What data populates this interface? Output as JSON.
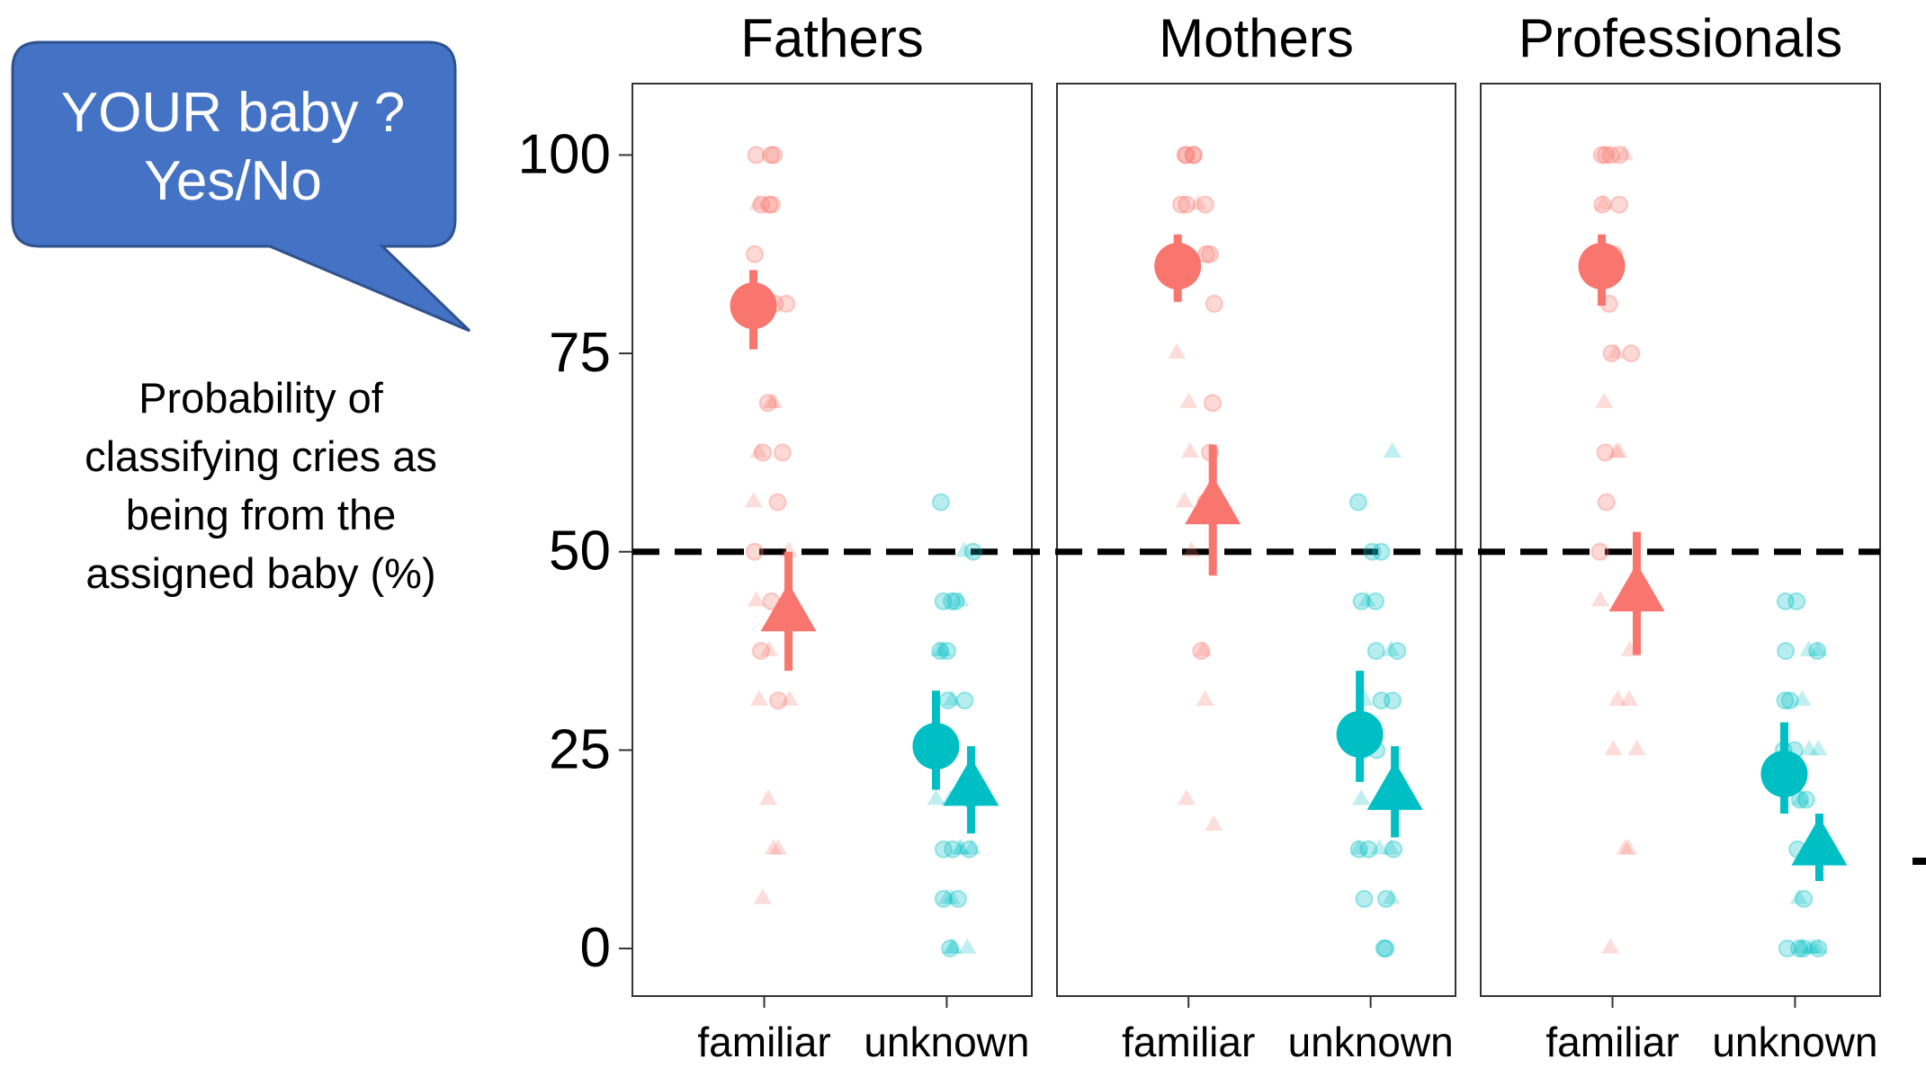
{
  "callout": {
    "line1": "YOUR baby ?",
    "line2": "Yes/No",
    "fill": "#4472C4"
  },
  "ylabel_lines": [
    "Probability of",
    "classifying cries as",
    "being from the",
    "assigned baby (%)"
  ],
  "colors": {
    "familiar": "#F8766D",
    "unknown": "#00BFC4"
  },
  "chart_data": {
    "type": "scatter",
    "facets": [
      "Fathers",
      "Mothers",
      "Professionals"
    ],
    "categories": [
      "familiar",
      "unknown"
    ],
    "yticks": [
      0,
      25,
      50,
      75,
      100
    ],
    "ylim": [
      -6,
      109
    ],
    "reference_line": 50,
    "grid": false,
    "summaries": [
      {
        "facet": "Fathers",
        "category": "familiar",
        "shape": "circle",
        "mean": 81,
        "low": 75.5,
        "high": 85.5
      },
      {
        "facet": "Fathers",
        "category": "familiar",
        "shape": "triangle",
        "mean": 42,
        "low": 35,
        "high": 50
      },
      {
        "facet": "Fathers",
        "category": "unknown",
        "shape": "circle",
        "mean": 25.5,
        "low": 20,
        "high": 32.5
      },
      {
        "facet": "Fathers",
        "category": "unknown",
        "shape": "triangle",
        "mean": 20,
        "low": 14.5,
        "high": 25.5
      },
      {
        "facet": "Mothers",
        "category": "familiar",
        "shape": "circle",
        "mean": 86,
        "low": 81.5,
        "high": 90
      },
      {
        "facet": "Mothers",
        "category": "familiar",
        "shape": "triangle",
        "mean": 55.5,
        "low": 47,
        "high": 63.5
      },
      {
        "facet": "Mothers",
        "category": "unknown",
        "shape": "circle",
        "mean": 27,
        "low": 21,
        "high": 35
      },
      {
        "facet": "Mothers",
        "category": "unknown",
        "shape": "triangle",
        "mean": 19.5,
        "low": 14,
        "high": 25.5
      },
      {
        "facet": "Professionals",
        "category": "familiar",
        "shape": "circle",
        "mean": 86,
        "low": 81,
        "high": 90
      },
      {
        "facet": "Professionals",
        "category": "familiar",
        "shape": "triangle",
        "mean": 44.5,
        "low": 37,
        "high": 52.5
      },
      {
        "facet": "Professionals",
        "category": "unknown",
        "shape": "circle",
        "mean": 22,
        "low": 17,
        "high": 28.5
      },
      {
        "facet": "Professionals",
        "category": "unknown",
        "shape": "triangle",
        "mean": 12.5,
        "low": 8.5,
        "high": 17
      }
    ],
    "points": [
      {
        "facet": "Fathers",
        "category": "familiar",
        "circle": [
          100,
          100,
          100,
          93.75,
          93.75,
          93.75,
          87.5,
          81.25,
          81.25,
          68.75,
          62.5,
          62.5,
          56.25,
          50,
          43.75,
          37.5,
          31.25
        ],
        "triangle": [
          93.75,
          68.75,
          68.75,
          62.5,
          56.25,
          50,
          43.75,
          43.75,
          37.5,
          31.25,
          31.25,
          18.75,
          12.5,
          12.5,
          6.25
        ]
      },
      {
        "facet": "Fathers",
        "category": "unknown",
        "circle": [
          56.25,
          50,
          43.75,
          43.75,
          43.75,
          37.5,
          37.5,
          31.25,
          31.25,
          25,
          25,
          18.75,
          12.5,
          12.5,
          12.5,
          6.25,
          6.25,
          0
        ],
        "triangle": [
          50,
          43.75,
          37.5,
          37.5,
          31.25,
          25,
          18.75,
          18.75,
          12.5,
          12.5,
          12.5,
          6.25,
          6.25,
          0,
          0,
          0
        ]
      },
      {
        "facet": "Mothers",
        "category": "familiar",
        "circle": [
          100,
          100,
          100,
          100,
          93.75,
          93.75,
          93.75,
          87.5,
          87.5,
          81.25,
          68.75,
          62.5,
          56.25,
          37.5
        ],
        "triangle": [
          93.75,
          75,
          68.75,
          62.5,
          56.25,
          50,
          37.5,
          31.25,
          18.75,
          15.5
        ]
      },
      {
        "facet": "Mothers",
        "category": "unknown",
        "circle": [
          56.25,
          50,
          50,
          43.75,
          43.75,
          37.5,
          37.5,
          31.25,
          31.25,
          25,
          25,
          18.75,
          12.5,
          12.5,
          12.5,
          6.25,
          6.25,
          0,
          0
        ],
        "triangle": [
          62.5,
          43.75,
          37.5,
          31.25,
          25,
          18.75,
          12.5,
          12.5,
          12.5,
          6.25
        ]
      },
      {
        "facet": "Professionals",
        "category": "familiar",
        "circle": [
          100,
          100,
          100,
          100,
          93.75,
          93.75,
          87.5,
          81.25,
          75,
          75,
          62.5,
          56.25,
          50
        ],
        "triangle": [
          100,
          93.75,
          75,
          68.75,
          62.5,
          62.5,
          43.75,
          37.5,
          31.25,
          31.25,
          25,
          25,
          12.5,
          12.5,
          0
        ]
      },
      {
        "facet": "Professionals",
        "category": "unknown",
        "circle": [
          43.75,
          43.75,
          37.5,
          37.5,
          31.25,
          31.25,
          25,
          25,
          18.75,
          18.75,
          12.5,
          6.25,
          0,
          0,
          0,
          0
        ],
        "triangle": [
          37.5,
          37.5,
          31.25,
          25,
          25,
          18.75,
          12.5,
          12.5,
          6.25,
          0,
          0,
          0,
          0
        ]
      }
    ]
  }
}
